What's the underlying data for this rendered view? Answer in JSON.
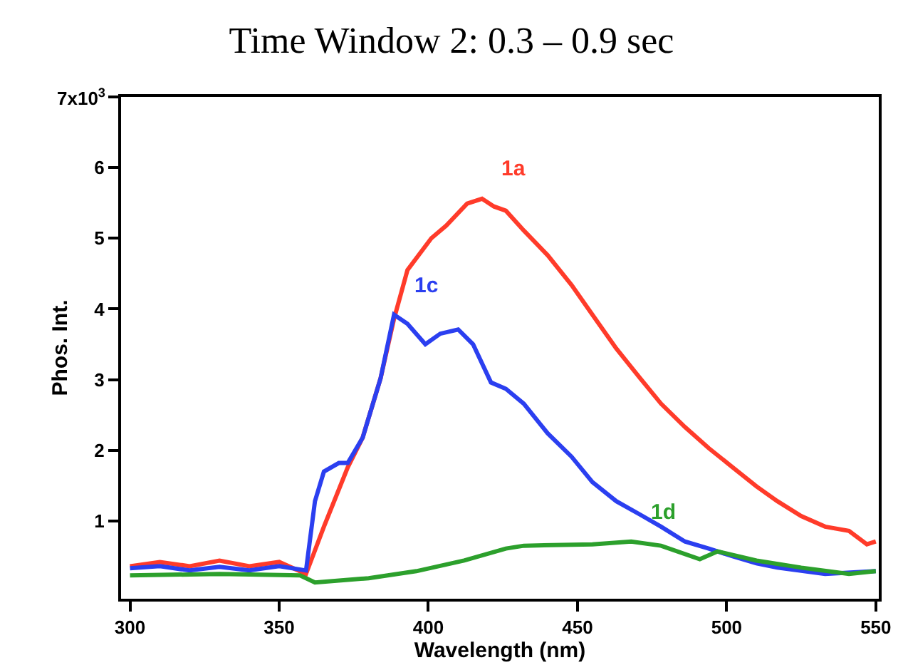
{
  "chart_data": {
    "type": "line",
    "title": "Time Window 2: 0.3 – 0.9 sec",
    "xlabel": "Wavelength (nm)",
    "ylabel": "Phos. Int.",
    "xlim": [
      297,
      551
    ],
    "xticks": [
      300,
      350,
      400,
      450,
      500,
      550
    ],
    "ylim": [
      -0.1,
      7
    ],
    "yticks": [
      1,
      2,
      3,
      4,
      5,
      6,
      {
        "value": 7,
        "label": null
      }
    ],
    "annotations": [
      "7x10$^{3}$"
    ],
    "grid": false,
    "legend": false,
    "marker": "none",
    "line_style": "solid",
    "series": [
      {
        "name": "1a",
        "color": "#ff3b2a",
        "x": [
          300,
          310,
          320,
          330,
          340,
          350,
          359,
          365,
          373,
          378,
          384,
          388.5,
          393,
          401,
          406,
          413,
          418,
          422,
          426,
          432,
          440,
          448,
          455,
          463,
          471,
          478,
          486,
          494,
          502,
          510,
          517,
          525,
          533,
          541,
          547,
          550
        ],
        "values": [
          0.36,
          0.42,
          0.36,
          0.44,
          0.36,
          0.42,
          0.25,
          0.92,
          1.76,
          2.18,
          3.02,
          3.86,
          4.55,
          5.0,
          5.18,
          5.49,
          5.56,
          5.45,
          5.39,
          5.11,
          4.76,
          4.34,
          3.92,
          3.44,
          3.02,
          2.66,
          2.33,
          2.03,
          1.76,
          1.49,
          1.28,
          1.07,
          0.92,
          0.86,
          0.67,
          0.71
        ]
      },
      {
        "name": "1c",
        "color": "#2b3ff0",
        "x": [
          300,
          310,
          320,
          330,
          340,
          350,
          359,
          362,
          365,
          370,
          373,
          378,
          384,
          388.5,
          393,
          399,
          404,
          410,
          415,
          421,
          426,
          432,
          440,
          448,
          455,
          463,
          471,
          478,
          486,
          494,
          502,
          510,
          517,
          533,
          550
        ],
        "values": [
          0.33,
          0.36,
          0.3,
          0.35,
          0.3,
          0.36,
          0.3,
          1.28,
          1.7,
          1.82,
          1.82,
          2.18,
          3.02,
          3.92,
          3.79,
          3.5,
          3.65,
          3.71,
          3.5,
          2.96,
          2.87,
          2.66,
          2.24,
          1.91,
          1.55,
          1.28,
          1.09,
          0.92,
          0.71,
          0.61,
          0.5,
          0.4,
          0.34,
          0.25,
          0.29
        ]
      },
      {
        "name": "1d",
        "color": "#2ca02c",
        "x": [
          300,
          330,
          357,
          362,
          380,
          396,
          412,
          426,
          432,
          455,
          468,
          478,
          491,
          497,
          510,
          525,
          541,
          550
        ],
        "values": [
          0.23,
          0.25,
          0.23,
          0.13,
          0.19,
          0.29,
          0.44,
          0.61,
          0.65,
          0.67,
          0.71,
          0.65,
          0.46,
          0.57,
          0.44,
          0.34,
          0.25,
          0.29
        ]
      }
    ]
  }
}
